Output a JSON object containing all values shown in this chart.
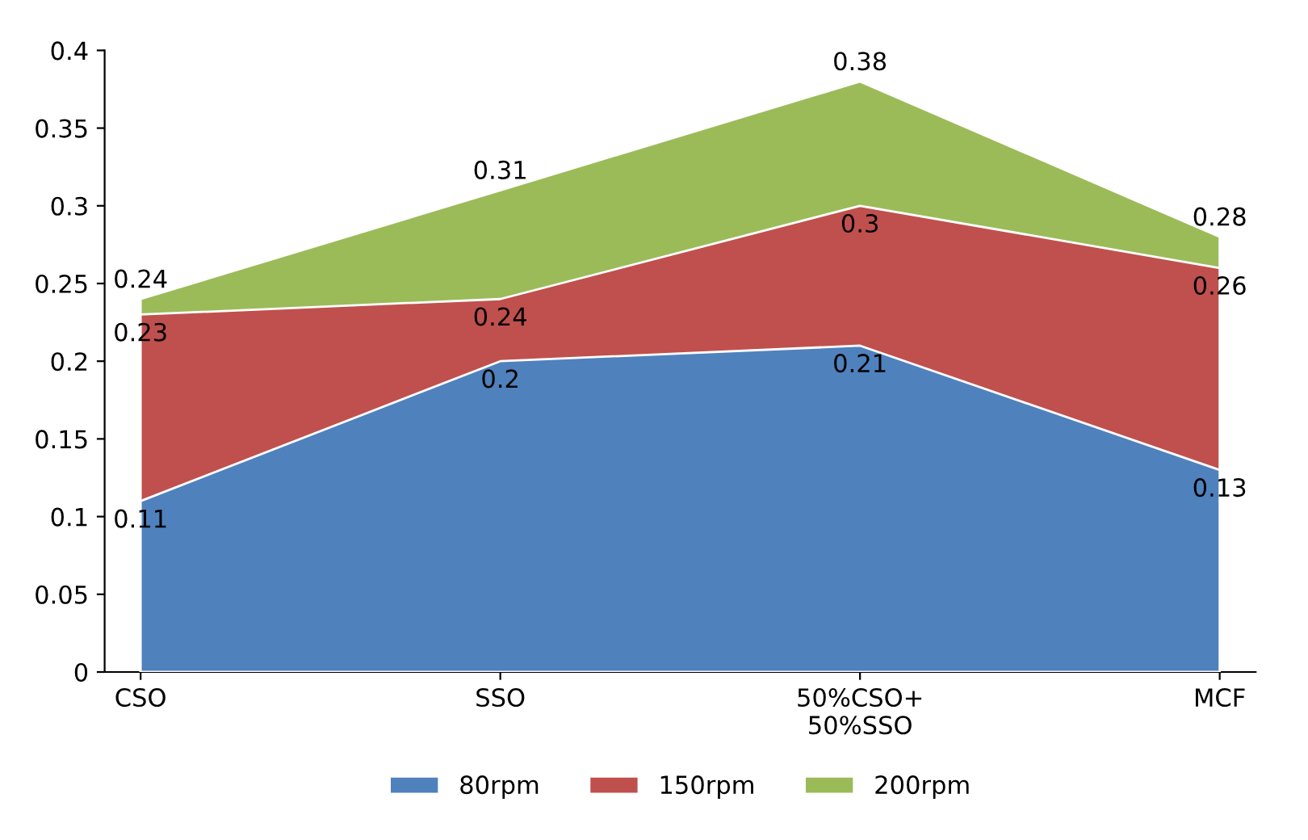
{
  "chart_data": {
    "type": "area",
    "categories": [
      "CSO",
      "SSO",
      "50%CSO+\n50%SSO",
      "MCF"
    ],
    "series": [
      {
        "name": "80rpm",
        "color": "#4f81bd",
        "values": [
          0.11,
          0.2,
          0.21,
          0.13
        ]
      },
      {
        "name": "150rpm",
        "color": "#c0504d",
        "values": [
          0.23,
          0.24,
          0.3,
          0.26
        ]
      },
      {
        "name": "200rpm",
        "color": "#9bbb59",
        "values": [
          0.24,
          0.31,
          0.38,
          0.28
        ]
      }
    ],
    "ylim": [
      0,
      0.4
    ],
    "yticks": [
      0,
      0.05,
      0.1,
      0.15,
      0.2,
      0.25,
      0.3,
      0.35,
      0.4
    ],
    "data_labels": true,
    "legend": "bottom",
    "grid": false
  }
}
